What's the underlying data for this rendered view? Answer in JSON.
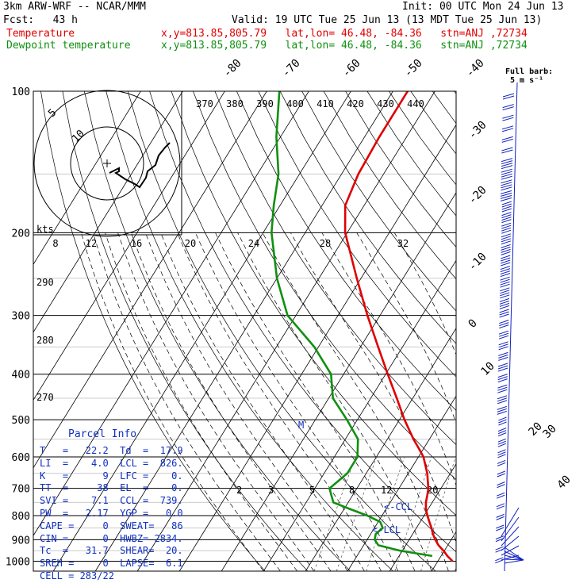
{
  "header": {
    "model": "3km ARW-WRF -- NCAR/MMM",
    "init": "Init: 00 UTC Mon 24 Jun 13",
    "fcst": "Fcst:   43 h",
    "valid": "Valid: 19 UTC Tue 25 Jun 13 (13 MDT Tue 25 Jun 13)",
    "temp_line": "Temperature",
    "temp_loc": "x,y=813.85,805.79   lat,lon= 46.48, -84.36   stn=ANJ ,72734",
    "dew_line": "Dewpoint temperature",
    "dew_loc": "x,y=813.85,805.79   lat,lon= 46.48, -84.36   stn=ANJ ,72734",
    "full_barb": "Full barb:",
    "full_barb_unit": "5 m s⁻¹"
  },
  "colors": {
    "temperature": "#e00000",
    "dewpoint": "#109010",
    "parcel_text": "#1030c0",
    "barbs": "#1020c0"
  },
  "hodograph": {
    "ring_labels": [
      "5",
      "10"
    ],
    "kts_label": "kts",
    "marker": "M",
    "ring_label_10_guess": "10"
  },
  "parcel_info": {
    "title": "Parcel Info",
    "rows": [
      "T   =   22.2  Td  =  17.9",
      "LI  =    4.0  LCL =  826.",
      "K   =      9  LFC =    0.",
      "TT  =     38  EL  =    0.",
      "SVI =    7.1  CCL =  739.",
      "PW  =   2.17  YGP =   0.0",
      "CAPE =     0  SWEAT=   86",
      "CIN =      0  HWBZ= 2834.",
      "Tc  =   31.7  SHEAR=  20.",
      "SREH =     0  LAPSE=  6.1",
      "CELL = 283/22"
    ]
  },
  "levels": {
    "ccl_label": "<-CCL",
    "lcl_label": "<-LCL"
  },
  "chart_data": {
    "type": "line",
    "yscale": "log-pressure",
    "ylabel": "",
    "pressure_ticks": [
      100,
      200,
      300,
      400,
      500,
      600,
      700,
      800,
      900,
      1000
    ],
    "isotherm_labels": [
      "-80",
      "-70",
      "-60",
      "-50",
      "-40",
      "-30",
      "-20",
      "-10",
      "0",
      "10",
      "20",
      "30",
      "40"
    ],
    "theta_labels": [
      "370",
      "380",
      "390",
      "400",
      "410",
      "420",
      "430",
      "440"
    ],
    "theta_e_labels": [
      "290",
      "280",
      "270"
    ],
    "mixing_ratio_labels": [
      "2",
      "3",
      "5",
      "8",
      "12",
      "20"
    ],
    "hodo_speed_labels": [
      "8",
      "12",
      "16",
      "20",
      "24",
      "28",
      "32"
    ],
    "series": [
      {
        "name": "Temperature",
        "points": [
          [
            1000,
            23.5
          ],
          [
            975,
            21.5
          ],
          [
            950,
            19.8
          ],
          [
            925,
            17.8
          ],
          [
            900,
            16.2
          ],
          [
            875,
            14.8
          ],
          [
            850,
            13.6
          ],
          [
            825,
            12.2
          ],
          [
            800,
            10.8
          ],
          [
            775,
            9.5
          ],
          [
            750,
            8.5
          ],
          [
            725,
            7.8
          ],
          [
            700,
            7.0
          ],
          [
            650,
            4.5
          ],
          [
            600,
            1.2
          ],
          [
            575,
            -1.2
          ],
          [
            550,
            -3.8
          ],
          [
            500,
            -8.8
          ],
          [
            450,
            -13.8
          ],
          [
            400,
            -19.5
          ],
          [
            350,
            -25.8
          ],
          [
            300,
            -33.0
          ],
          [
            250,
            -41.0
          ],
          [
            200,
            -50.5
          ],
          [
            175,
            -54.5
          ],
          [
            150,
            -56.0
          ],
          [
            125,
            -56.5
          ],
          [
            100,
            -56.5
          ]
        ]
      },
      {
        "name": "Dewpoint temperature",
        "points": [
          [
            975,
            17.9
          ],
          [
            950,
            9.5
          ],
          [
            925,
            3.5
          ],
          [
            900,
            1.8
          ],
          [
            875,
            1.2
          ],
          [
            850,
            2.0
          ],
          [
            825,
            0.5
          ],
          [
            800,
            -3.5
          ],
          [
            775,
            -8.5
          ],
          [
            750,
            -13.5
          ],
          [
            725,
            -15.0
          ],
          [
            700,
            -16.5
          ],
          [
            650,
            -14.5
          ],
          [
            600,
            -14.5
          ],
          [
            550,
            -17.0
          ],
          [
            500,
            -22.5
          ],
          [
            450,
            -29.0
          ],
          [
            400,
            -33.0
          ],
          [
            350,
            -41.0
          ],
          [
            300,
            -52.0
          ],
          [
            250,
            -60.0
          ],
          [
            200,
            -68.0
          ],
          [
            175,
            -71.5
          ],
          [
            150,
            -75.0
          ],
          [
            125,
            -81.0
          ],
          [
            100,
            -87.0
          ]
        ]
      }
    ],
    "hodograph_trace": [
      [
        -22,
        -6
      ],
      [
        -18,
        -8
      ],
      [
        -12,
        -14
      ],
      [
        -6,
        -16
      ],
      [
        -4,
        -10
      ],
      [
        0,
        -4
      ],
      [
        4,
        2
      ],
      [
        8,
        6
      ],
      [
        12,
        8
      ],
      [
        14,
        14
      ],
      [
        16,
        18
      ],
      [
        18,
        22
      ]
    ]
  }
}
